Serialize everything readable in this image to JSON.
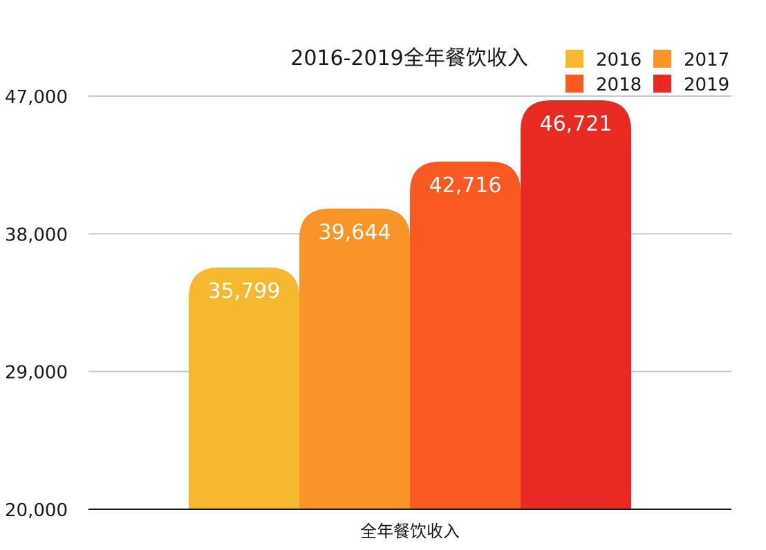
{
  "chart_data": {
    "type": "bar",
    "title": "2016-2019全年餐饮收入",
    "categories": [
      "全年餐饮收入"
    ],
    "series": [
      {
        "name": "2016",
        "values": [
          35799
        ],
        "label": "35,799",
        "color": "#F5B82E"
      },
      {
        "name": "2017",
        "values": [
          39644
        ],
        "label": "39,644",
        "color": "#F99429"
      },
      {
        "name": "2018",
        "values": [
          42716
        ],
        "label": "42,716",
        "color": "#FA5A22"
      },
      {
        "name": "2019",
        "values": [
          46721
        ],
        "label": "46,721",
        "color": "#E92A22"
      }
    ],
    "ylim": [
      20000,
      47000
    ],
    "yticks": [
      {
        "value": 20000,
        "label": "20,000"
      },
      {
        "value": 29000,
        "label": "29,000"
      },
      {
        "value": 38000,
        "label": "38,000"
      },
      {
        "value": 47000,
        "label": "47,000"
      }
    ],
    "xlabel": "",
    "ylabel": "",
    "grid": true,
    "legend_position": "top-right",
    "colors": {
      "grid": "#c8c8c8",
      "axis": "#1a1a1a",
      "text": "#1a1a1a",
      "data_label": "#ffffff"
    }
  }
}
